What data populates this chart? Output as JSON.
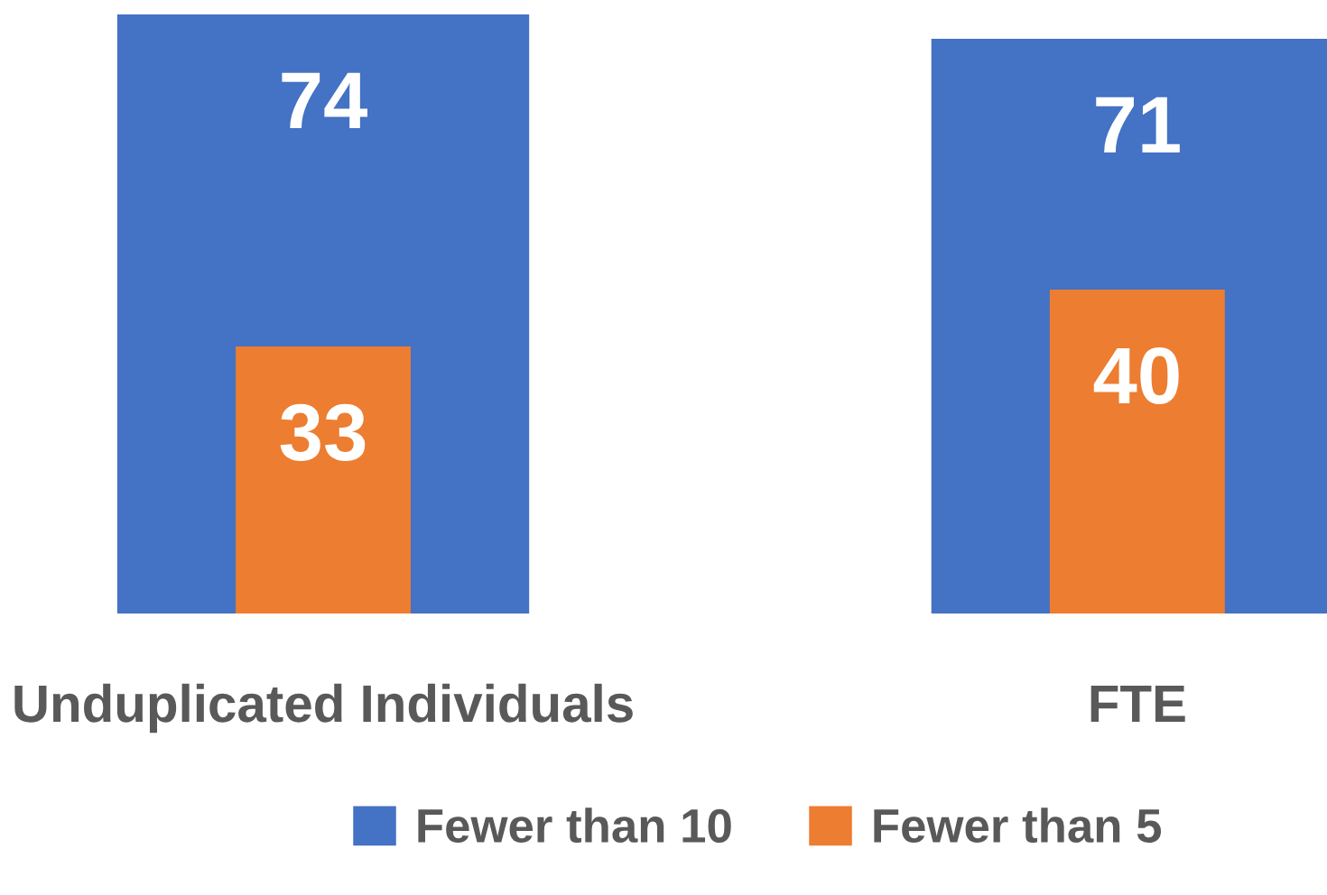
{
  "chart_data": {
    "type": "bar",
    "categories": [
      "Unduplicated Individuals",
      "FTE"
    ],
    "series": [
      {
        "name": "Fewer than 10",
        "color": "#4472c4",
        "values": [
          74,
          71
        ]
      },
      {
        "name": "Fewer than 5",
        "color": "#ed7d31",
        "values": [
          33,
          40
        ]
      }
    ],
    "ylim": [
      0,
      74
    ],
    "data_labels": true,
    "legend": "bottom",
    "tick_labels": "x"
  }
}
